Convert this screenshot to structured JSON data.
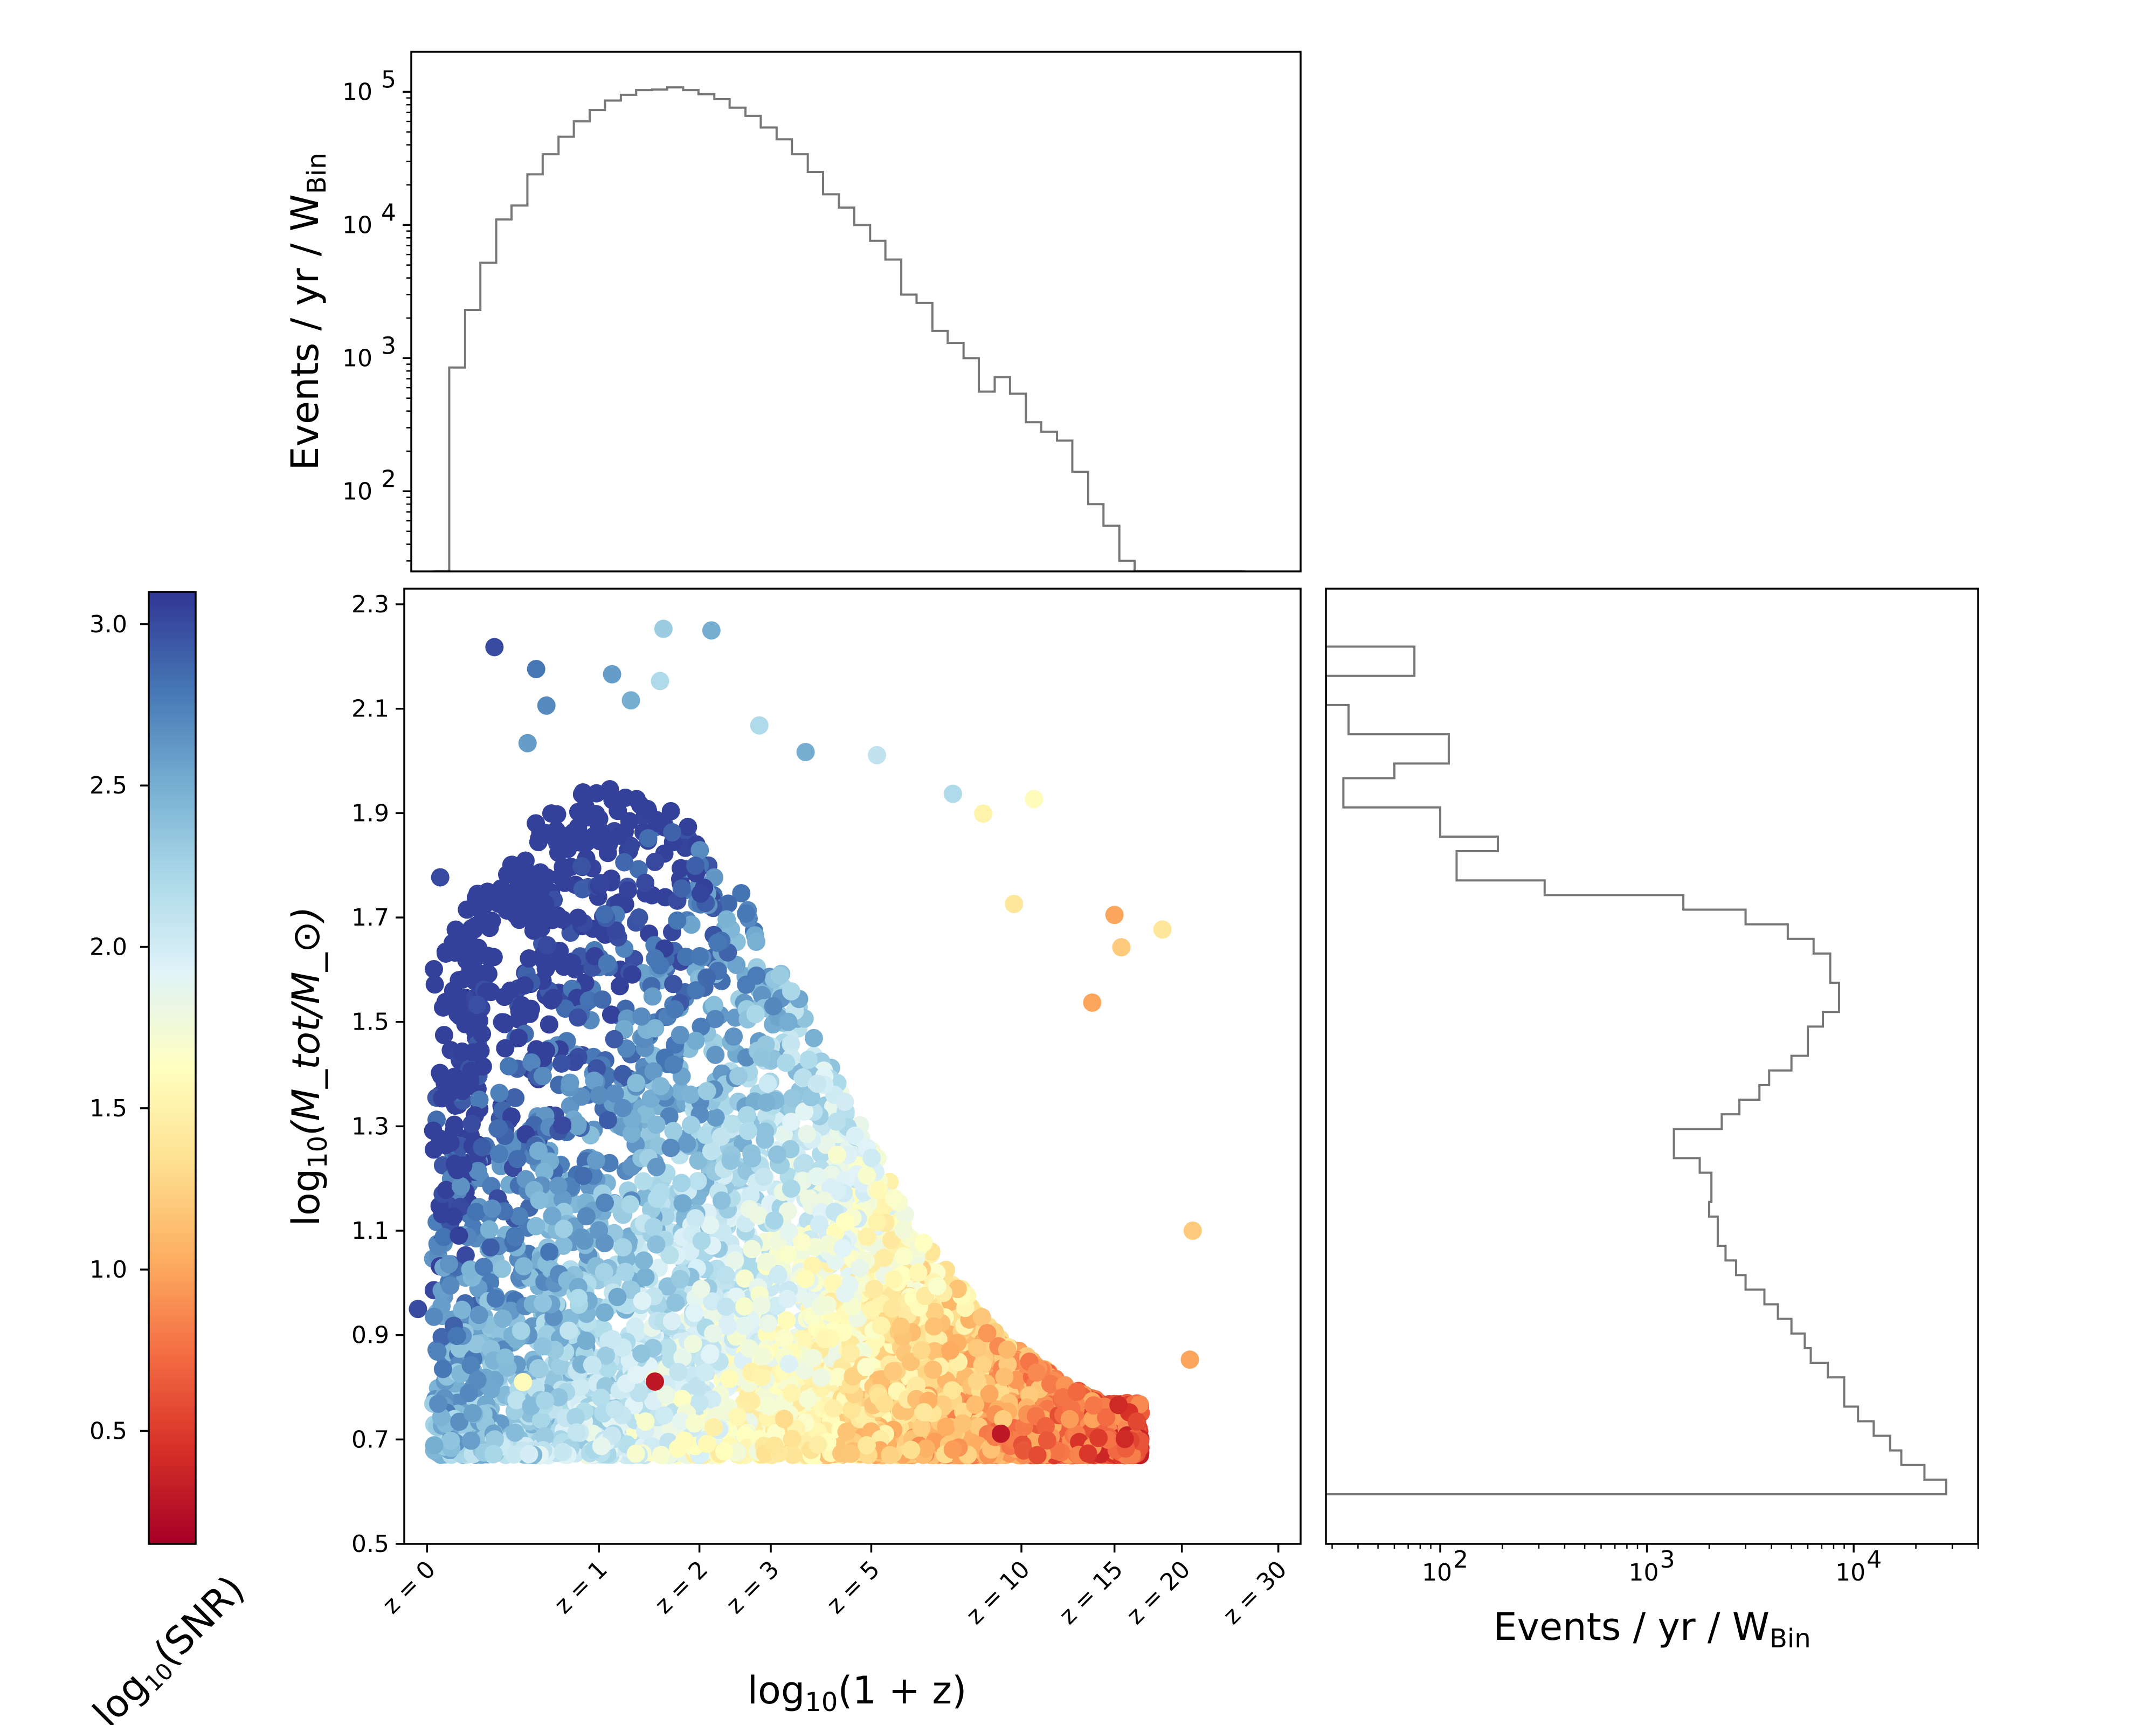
{
  "chart_data": [
    {
      "type": "step-histogram",
      "panel": "top marginal (redshift distribution)",
      "ylabel": "Events / yr / W",
      "ylabel_subscript": "Bin",
      "yscale": "log",
      "ylim": [
        25,
        200000
      ],
      "yticks": [
        {
          "v": 100,
          "e": "2"
        },
        {
          "v": 1000,
          "e": "3"
        },
        {
          "v": 10000,
          "e": "4"
        },
        {
          "v": 100000,
          "e": "5"
        }
      ],
      "xlim": [
        -0.04,
        1.53
      ],
      "bin_edges": [
        0.0,
        0.027,
        0.055,
        0.082,
        0.11,
        0.137,
        0.165,
        0.192,
        0.22,
        0.247,
        0.275,
        0.302,
        0.33,
        0.357,
        0.385,
        0.412,
        0.44,
        0.467,
        0.495,
        0.522,
        0.55,
        0.577,
        0.605,
        0.632,
        0.66,
        0.687,
        0.715,
        0.742,
        0.77,
        0.797,
        0.825,
        0.852,
        0.88,
        0.907,
        0.935,
        0.962,
        0.99,
        1.017,
        1.045,
        1.072,
        1.1,
        1.127,
        1.155,
        1.182,
        1.21,
        1.237,
        1.265,
        1.292,
        1.32,
        1.347,
        1.375,
        1.402,
        1.43
      ],
      "counts": [
        25,
        850,
        2300,
        5200,
        11000,
        14000,
        24000,
        34000,
        46000,
        60000,
        73000,
        86000,
        95000,
        103000,
        104000,
        108000,
        103000,
        96000,
        88000,
        76000,
        66000,
        54000,
        44000,
        34000,
        25000,
        17000,
        13500,
        10000,
        7600,
        5500,
        3000,
        2600,
        1600,
        1300,
        1000,
        560,
        720,
        540,
        330,
        280,
        240,
        140,
        80,
        55,
        30,
        25,
        25,
        25,
        25,
        25,
        25,
        25
      ]
    },
    {
      "type": "scatter",
      "panel": "main",
      "xlabel": "log",
      "xlabel_sub": "10",
      "xlabel_arg": "(1 + z)",
      "ylabel": "log",
      "ylabel_sub": "10",
      "ylabel_arg": "(M_tot/M_⊙)",
      "xlim": [
        -0.04,
        1.53
      ],
      "ylim": [
        0.5,
        2.33
      ],
      "yticks": [
        "0.5",
        "0.7",
        "0.9",
        "1.1",
        "1.3",
        "1.5",
        "1.7",
        "1.9",
        "2.1",
        "2.3"
      ],
      "xticks": [
        {
          "label": "z = 0",
          "x": 0.0
        },
        {
          "label": "z = 1",
          "x": 0.301
        },
        {
          "label": "z = 2",
          "x": 0.477
        },
        {
          "label": "z = 3",
          "x": 0.602
        },
        {
          "label": "z = 5",
          "x": 0.778
        },
        {
          "label": "z = 10",
          "x": 1.041
        },
        {
          "label": "z = 15",
          "x": 1.204
        },
        {
          "label": "z = 20",
          "x": 1.322
        },
        {
          "label": "z = 30",
          "x": 1.491
        }
      ],
      "color_variable": "log10(SNR)",
      "colormap": "RdYlBu",
      "highlighted_points": [
        {
          "x": 0.118,
          "y": 2.218,
          "c": 3.0
        },
        {
          "x": 0.191,
          "y": 2.176,
          "c": 2.8
        },
        {
          "x": 0.209,
          "y": 2.106,
          "c": 2.7
        },
        {
          "x": 0.324,
          "y": 2.166,
          "c": 2.6
        },
        {
          "x": 0.357,
          "y": 2.116,
          "c": 2.5
        },
        {
          "x": 0.414,
          "y": 2.253,
          "c": 2.3
        },
        {
          "x": 0.498,
          "y": 2.25,
          "c": 2.5
        },
        {
          "x": 0.408,
          "y": 2.153,
          "c": 2.2
        },
        {
          "x": 0.176,
          "y": 2.034,
          "c": 2.6
        },
        {
          "x": 0.023,
          "y": 1.777,
          "c": 3.0
        },
        {
          "x": -0.016,
          "y": 0.95,
          "c": 3.0
        },
        {
          "x": 0.012,
          "y": 0.935,
          "c": 2.7
        },
        {
          "x": 1.341,
          "y": 1.1,
          "c": 1.2
        },
        {
          "x": 1.336,
          "y": 0.853,
          "c": 1.0
        },
        {
          "x": 1.288,
          "y": 1.677,
          "c": 1.4
        },
        {
          "x": 1.204,
          "y": 1.705,
          "c": 1.0
        },
        {
          "x": 1.216,
          "y": 1.643,
          "c": 1.2
        },
        {
          "x": 1.211,
          "y": 0.766,
          "c": 0.4
        },
        {
          "x": 0.582,
          "y": 2.068,
          "c": 2.2
        },
        {
          "x": 0.663,
          "y": 2.017,
          "c": 2.5
        },
        {
          "x": 0.788,
          "y": 2.011,
          "c": 2.1
        },
        {
          "x": 0.921,
          "y": 1.937,
          "c": 2.2
        },
        {
          "x": 0.974,
          "y": 1.899,
          "c": 1.5
        },
        {
          "x": 1.063,
          "y": 1.927,
          "c": 1.6
        },
        {
          "x": 1.165,
          "y": 1.537,
          "c": 1.0
        },
        {
          "x": 1.028,
          "y": 1.726,
          "c": 1.4
        },
        {
          "x": 0.168,
          "y": 0.81,
          "c": 1.6
        },
        {
          "x": 0.399,
          "y": 0.811,
          "c": 0.3
        },
        {
          "x": 1.176,
          "y": 0.703,
          "c": 0.5
        },
        {
          "x": 1.222,
          "y": 0.701,
          "c": 0.4
        },
        {
          "x": 1.005,
          "y": 0.711,
          "c": 0.3
        }
      ]
    },
    {
      "type": "step-histogram",
      "orientation": "horizontal",
      "panel": "right marginal (mass distribution)",
      "xlabel": "Events / yr / W",
      "xlabel_subscript": "Bin",
      "xscale": "log",
      "xlim": [
        28,
        40000
      ],
      "xticks": [
        {
          "v": 100,
          "e": "2"
        },
        {
          "v": 1000,
          "e": "3"
        },
        {
          "v": 10000,
          "e": "4"
        }
      ],
      "bin_edges": [
        0.595,
        0.623,
        0.651,
        0.679,
        0.707,
        0.735,
        0.763,
        0.791,
        0.819,
        0.847,
        0.875,
        0.903,
        0.931,
        0.959,
        0.987,
        1.015,
        1.043,
        1.071,
        1.099,
        1.127,
        1.155,
        1.183,
        1.211,
        1.239,
        1.267,
        1.295,
        1.323,
        1.351,
        1.379,
        1.407,
        1.435,
        1.463,
        1.491,
        1.519,
        1.547,
        1.575,
        1.603,
        1.631,
        1.659,
        1.687,
        1.715,
        1.743,
        1.771,
        1.799,
        1.827,
        1.855,
        1.883,
        1.911,
        1.939,
        1.967,
        1.995,
        2.023,
        2.051,
        2.079,
        2.107,
        2.135,
        2.163,
        2.191,
        2.219
      ],
      "counts": [
        28000,
        22000,
        17000,
        15000,
        12500,
        10500,
        9000,
        9000,
        7500,
        6200,
        5800,
        5000,
        4300,
        3700,
        3000,
        2700,
        2400,
        2200,
        2200,
        2000,
        2050,
        2050,
        1800,
        1350,
        1350,
        2300,
        2800,
        3500,
        3900,
        5000,
        6000,
        6000,
        7100,
        8500,
        8500,
        7700,
        7700,
        6400,
        4800,
        3000,
        1500,
        320,
        120,
        120,
        190,
        100,
        100,
        34,
        34,
        60,
        110,
        110,
        36,
        36,
        28,
        28,
        75,
        75
      ]
    }
  ],
  "colorbar": {
    "label_text": "log",
    "label_sub": "10",
    "label_arg": "(SNR)",
    "range": [
      0.15,
      3.1
    ],
    "ticks": [
      "0.5",
      "1.0",
      "1.5",
      "2.0",
      "2.5",
      "3.0"
    ]
  }
}
